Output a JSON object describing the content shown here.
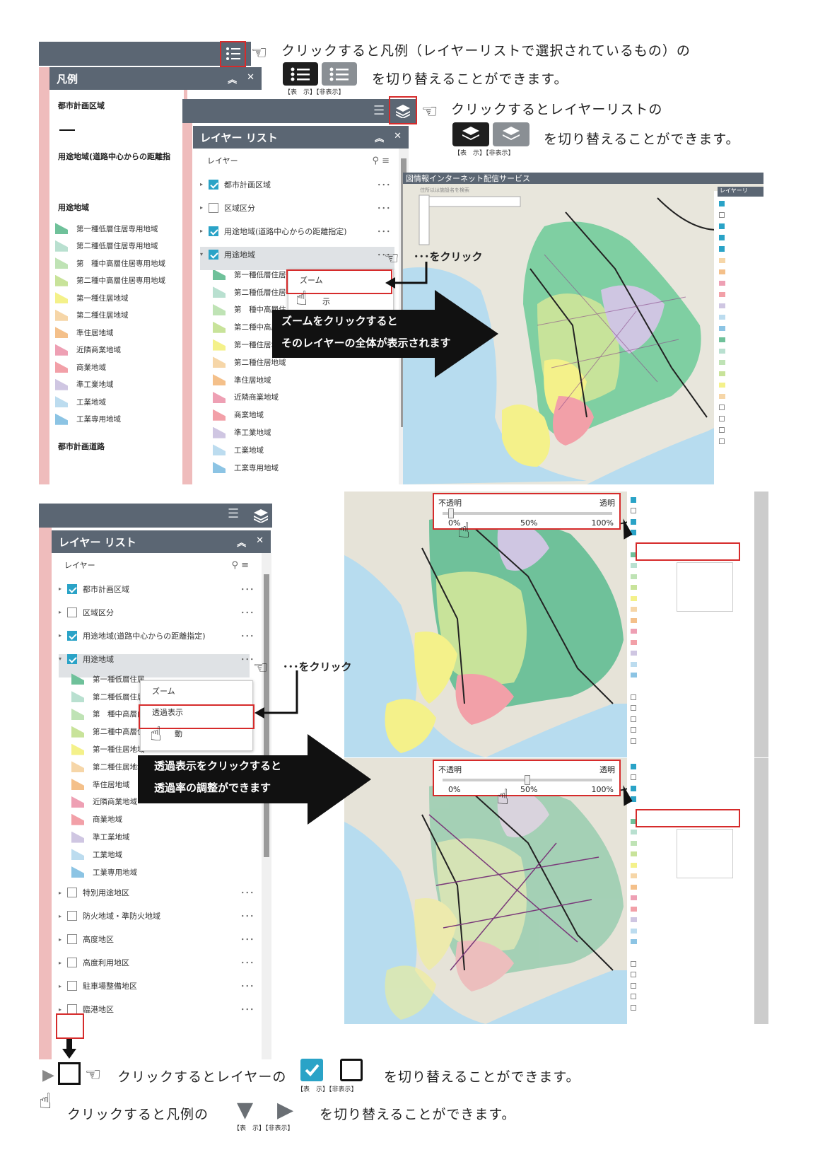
{
  "captions": {
    "legend_toggle": "クリックすると凡例（レイヤーリストで選択されているもの）の",
    "legend_toggle2": "を切り替えることができます。",
    "layerlist_toggle": "クリックするとレイヤーリストの",
    "layerlist_toggle2": "を切り替えることができます。",
    "show_hide": "【表　示】【非表示】",
    "click_dots1": "･･･をクリック",
    "click_dots2": "･･･をクリック",
    "zoom_callout_line1": "ズームをクリックすると",
    "zoom_callout_line2": "そのレイヤーの全体が表示されます",
    "opacity_callout_line1": "透過表示をクリックすると",
    "opacity_callout_line2": "透過率の調整ができます",
    "checkbox_toggle": "クリックするとレイヤーの",
    "checkbox_toggle2": "を切り替えることができます。",
    "legend_expand": "クリックすると凡例の",
    "legend_expand2": "を切り替えることができます。"
  },
  "legend_panel": {
    "title": "凡例",
    "sections": {
      "city_planning_area": "都市計画区域",
      "youto_distance": "用途地域(道路中心からの距離指",
      "youto": "用途地域",
      "roads": "都市計画道路"
    },
    "items": [
      {
        "label": "第一種低層住居専用地域",
        "color": "#6fc19a"
      },
      {
        "label": "第二種低層住居専用地域",
        "color": "#b9e0d0"
      },
      {
        "label": "第　種中高層住居専用地域",
        "color": "#bfe3b5"
      },
      {
        "label": "第二種中高層住居専用地域",
        "color": "#c8e39a"
      },
      {
        "label": "第一種住居地域",
        "color": "#f4f18a"
      },
      {
        "label": "第二種住居地域",
        "color": "#f6d6a8"
      },
      {
        "label": "準住居地域",
        "color": "#f4c08a"
      },
      {
        "label": "近隣商業地域",
        "color": "#eea0b4"
      },
      {
        "label": "商業地域",
        "color": "#f2a0a8"
      },
      {
        "label": "準工業地域",
        "color": "#cfc6e2"
      },
      {
        "label": "工業地域",
        "color": "#bcdcef"
      },
      {
        "label": "工業専用地域",
        "color": "#8cc4e4"
      }
    ]
  },
  "layer_list": {
    "title": "レイヤー リスト",
    "title2": "レイヤー リスト",
    "header": "レイヤー",
    "layers": [
      {
        "label": "都市計画区域",
        "checked": true
      },
      {
        "label": "区域区分",
        "checked": false
      },
      {
        "label": "用途地域(道路中心からの距離指定)",
        "checked": true
      },
      {
        "label": "用途地域",
        "checked": true
      }
    ],
    "sublegend": [
      "第一種低層住居",
      "第二種低層住居",
      "第　種中高層住",
      "第二種中高層住",
      "第一種住居地域",
      "第二種住居地域",
      "準住居地域",
      "近隣商業地域",
      "商業地域",
      "準工業地域",
      "工業地域",
      "工業専用地域"
    ],
    "sublegend_b": [
      "第一種低層住居",
      "第二種低層住居",
      "第　種中高層由",
      "第二種中高層住",
      "第一種住居地域",
      "第二種住居地域",
      "準住居地域",
      "近隣商業地域",
      "商業地域",
      "準工業地域",
      "工業地域",
      "工業専用地域"
    ],
    "extra_layers": [
      "特別用途地区",
      "防火地域・準防火地域",
      "高度地区",
      "高度利用地区",
      "駐車場整備地区",
      "臨港地区"
    ],
    "dots": "･･･"
  },
  "menu": {
    "zoom": "ズーム",
    "transparency": "透過表示",
    "move": "動",
    "hint": "示"
  },
  "map": {
    "title": "図情報インターネット配信サービス",
    "search_placeholder": "住所以は施設名を検索",
    "layer_panel": "レイヤーリ"
  },
  "slider": {
    "opaque": "不透明",
    "transparent": "透明",
    "ticks": [
      "0%",
      "50%",
      "100%"
    ],
    "value_top": 0.05,
    "value_bottom": 0.5
  }
}
